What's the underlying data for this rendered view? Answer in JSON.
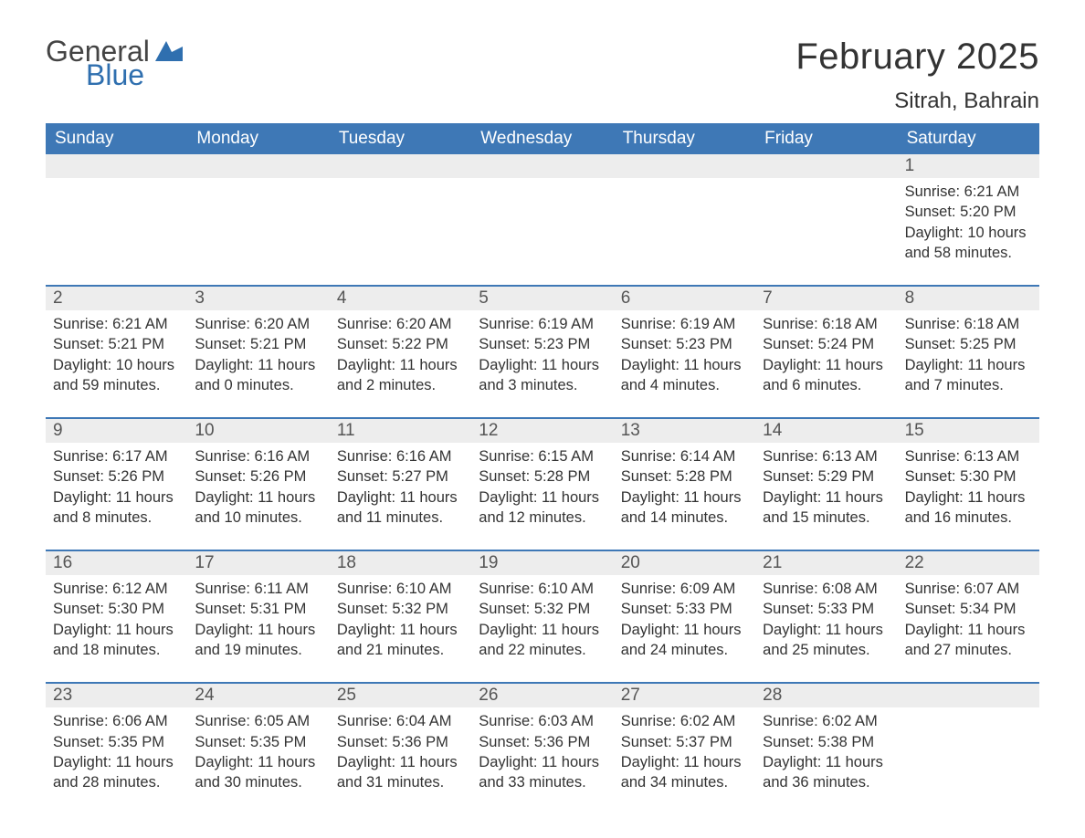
{
  "logo": {
    "text1": "General",
    "text2": "Blue",
    "color1": "#444444",
    "color2": "#2f6faf",
    "icon_color": "#2f6faf"
  },
  "title": "February 2025",
  "location": "Sitrah, Bahrain",
  "header_bg": "#3e78b6",
  "header_text_color": "#ffffff",
  "daynum_bg": "#ededed",
  "row_border_color": "#3e78b6",
  "text_color": "#333333",
  "weekdays": [
    "Sunday",
    "Monday",
    "Tuesday",
    "Wednesday",
    "Thursday",
    "Friday",
    "Saturday"
  ],
  "weeks": [
    {
      "days": [
        null,
        null,
        null,
        null,
        null,
        null,
        {
          "n": "1",
          "sunrise": "6:21 AM",
          "sunset": "5:20 PM",
          "daylight": "10 hours and 58 minutes."
        }
      ]
    },
    {
      "days": [
        {
          "n": "2",
          "sunrise": "6:21 AM",
          "sunset": "5:21 PM",
          "daylight": "10 hours and 59 minutes."
        },
        {
          "n": "3",
          "sunrise": "6:20 AM",
          "sunset": "5:21 PM",
          "daylight": "11 hours and 0 minutes."
        },
        {
          "n": "4",
          "sunrise": "6:20 AM",
          "sunset": "5:22 PM",
          "daylight": "11 hours and 2 minutes."
        },
        {
          "n": "5",
          "sunrise": "6:19 AM",
          "sunset": "5:23 PM",
          "daylight": "11 hours and 3 minutes."
        },
        {
          "n": "6",
          "sunrise": "6:19 AM",
          "sunset": "5:23 PM",
          "daylight": "11 hours and 4 minutes."
        },
        {
          "n": "7",
          "sunrise": "6:18 AM",
          "sunset": "5:24 PM",
          "daylight": "11 hours and 6 minutes."
        },
        {
          "n": "8",
          "sunrise": "6:18 AM",
          "sunset": "5:25 PM",
          "daylight": "11 hours and 7 minutes."
        }
      ]
    },
    {
      "days": [
        {
          "n": "9",
          "sunrise": "6:17 AM",
          "sunset": "5:26 PM",
          "daylight": "11 hours and 8 minutes."
        },
        {
          "n": "10",
          "sunrise": "6:16 AM",
          "sunset": "5:26 PM",
          "daylight": "11 hours and 10 minutes."
        },
        {
          "n": "11",
          "sunrise": "6:16 AM",
          "sunset": "5:27 PM",
          "daylight": "11 hours and 11 minutes."
        },
        {
          "n": "12",
          "sunrise": "6:15 AM",
          "sunset": "5:28 PM",
          "daylight": "11 hours and 12 minutes."
        },
        {
          "n": "13",
          "sunrise": "6:14 AM",
          "sunset": "5:28 PM",
          "daylight": "11 hours and 14 minutes."
        },
        {
          "n": "14",
          "sunrise": "6:13 AM",
          "sunset": "5:29 PM",
          "daylight": "11 hours and 15 minutes."
        },
        {
          "n": "15",
          "sunrise": "6:13 AM",
          "sunset": "5:30 PM",
          "daylight": "11 hours and 16 minutes."
        }
      ]
    },
    {
      "days": [
        {
          "n": "16",
          "sunrise": "6:12 AM",
          "sunset": "5:30 PM",
          "daylight": "11 hours and 18 minutes."
        },
        {
          "n": "17",
          "sunrise": "6:11 AM",
          "sunset": "5:31 PM",
          "daylight": "11 hours and 19 minutes."
        },
        {
          "n": "18",
          "sunrise": "6:10 AM",
          "sunset": "5:32 PM",
          "daylight": "11 hours and 21 minutes."
        },
        {
          "n": "19",
          "sunrise": "6:10 AM",
          "sunset": "5:32 PM",
          "daylight": "11 hours and 22 minutes."
        },
        {
          "n": "20",
          "sunrise": "6:09 AM",
          "sunset": "5:33 PM",
          "daylight": "11 hours and 24 minutes."
        },
        {
          "n": "21",
          "sunrise": "6:08 AM",
          "sunset": "5:33 PM",
          "daylight": "11 hours and 25 minutes."
        },
        {
          "n": "22",
          "sunrise": "6:07 AM",
          "sunset": "5:34 PM",
          "daylight": "11 hours and 27 minutes."
        }
      ]
    },
    {
      "days": [
        {
          "n": "23",
          "sunrise": "6:06 AM",
          "sunset": "5:35 PM",
          "daylight": "11 hours and 28 minutes."
        },
        {
          "n": "24",
          "sunrise": "6:05 AM",
          "sunset": "5:35 PM",
          "daylight": "11 hours and 30 minutes."
        },
        {
          "n": "25",
          "sunrise": "6:04 AM",
          "sunset": "5:36 PM",
          "daylight": "11 hours and 31 minutes."
        },
        {
          "n": "26",
          "sunrise": "6:03 AM",
          "sunset": "5:36 PM",
          "daylight": "11 hours and 33 minutes."
        },
        {
          "n": "27",
          "sunrise": "6:02 AM",
          "sunset": "5:37 PM",
          "daylight": "11 hours and 34 minutes."
        },
        {
          "n": "28",
          "sunrise": "6:02 AM",
          "sunset": "5:38 PM",
          "daylight": "11 hours and 36 minutes."
        },
        null
      ]
    }
  ],
  "labels": {
    "sunrise": "Sunrise: ",
    "sunset": "Sunset: ",
    "daylight": "Daylight: "
  }
}
